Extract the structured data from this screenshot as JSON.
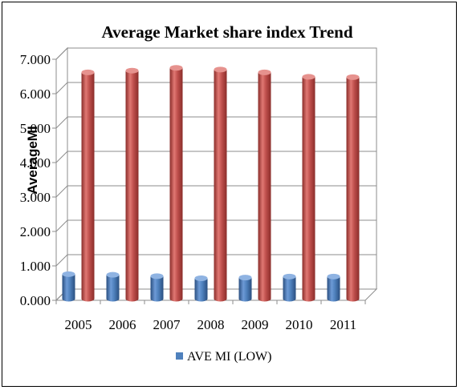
{
  "chart_data": {
    "type": "bar",
    "title": "Average Market share index Trend",
    "ylabel": "AverageMI",
    "xlabel": "",
    "categories": [
      "2005",
      "2006",
      "2007",
      "2008",
      "2009",
      "2010",
      "2011"
    ],
    "series": [
      {
        "name": "AVE MI (LOW)",
        "color": "#4f81bd",
        "values": [
          0.76,
          0.74,
          0.7,
          0.64,
          0.66,
          0.69,
          0.69
        ]
      },
      {
        "name": "",
        "color": "#c0504d",
        "values": [
          6.62,
          6.67,
          6.75,
          6.7,
          6.62,
          6.49,
          6.48
        ]
      }
    ],
    "yticks": [
      "0.000",
      "1.000",
      "2.000",
      "3.000",
      "4.000",
      "5.000",
      "6.000",
      "7.000"
    ],
    "ylim": [
      0,
      7
    ],
    "grid": true,
    "legend_position": "bottom",
    "style": "3d-cylinder"
  }
}
